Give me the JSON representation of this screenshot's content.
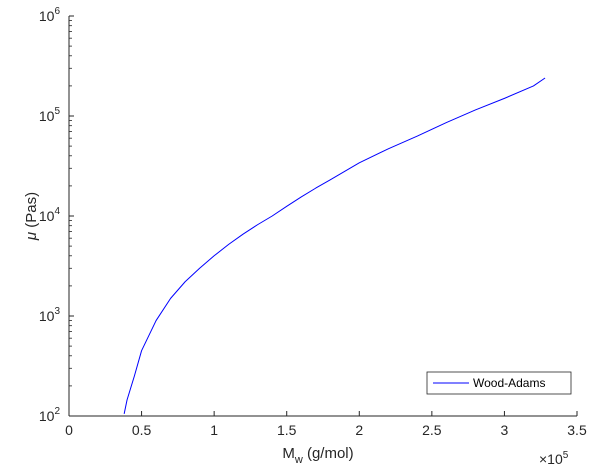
{
  "chart_data": {
    "type": "line",
    "xscale": "linear",
    "yscale": "log",
    "xlim": [
      0,
      350000
    ],
    "ylim": [
      100,
      1000000
    ],
    "x_ticks": [
      0,
      50000,
      100000,
      150000,
      200000,
      250000,
      300000,
      350000
    ],
    "x_tick_labels": [
      "0",
      "0.5",
      "1",
      "1.5",
      "2",
      "2.5",
      "3",
      "3.5"
    ],
    "x_exponent_base": "×10",
    "x_exponent_power": "5",
    "y_ticks": [
      {
        "value": 100,
        "base": "10",
        "power": "2"
      },
      {
        "value": 1000,
        "base": "10",
        "power": "3"
      },
      {
        "value": 10000,
        "base": "10",
        "power": "4"
      },
      {
        "value": 100000,
        "base": "10",
        "power": "5"
      },
      {
        "value": 1000000,
        "base": "10",
        "power": "6"
      }
    ],
    "xlabel_main": "M",
    "xlabel_sub": "w",
    "xlabel_rest": " (g/mol)",
    "ylabel_mu": "μ",
    "ylabel_rest": " (Pas)",
    "grid": false,
    "legend_position": "bottom-right",
    "series": [
      {
        "name": "Wood-Adams",
        "color": "#0000ff",
        "x": [
          38000,
          40000,
          45000,
          50000,
          60000,
          70000,
          80000,
          90000,
          100000,
          110000,
          120000,
          130000,
          140000,
          150000,
          160000,
          170000,
          180000,
          190000,
          200000,
          220000,
          240000,
          260000,
          280000,
          300000,
          320000,
          328000
        ],
        "y": [
          105,
          145,
          250,
          450,
          900,
          1500,
          2200,
          3000,
          4000,
          5200,
          6600,
          8200,
          10000,
          12500,
          15500,
          19000,
          23000,
          28000,
          34000,
          47000,
          63000,
          86000,
          115000,
          150000,
          200000,
          240000
        ]
      }
    ]
  }
}
